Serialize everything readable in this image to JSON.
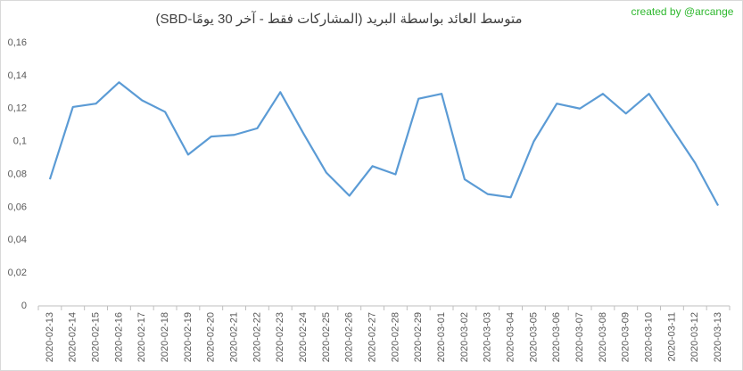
{
  "chart_data": {
    "type": "line",
    "title": "متوسط العائد بواسطة البريد (المشاركات فقط - آخر 30 يومًا-SBD)",
    "annotation": "created by @arcange",
    "categories": [
      "2020-02-13",
      "2020-02-14",
      "2020-02-15",
      "2020-02-16",
      "2020-02-17",
      "2020-02-18",
      "2020-02-19",
      "2020-02-20",
      "2020-02-21",
      "2020-02-22",
      "2020-02-23",
      "2020-02-24",
      "2020-02-25",
      "2020-02-26",
      "2020-02-27",
      "2020-02-28",
      "2020-02-29",
      "2020-03-01",
      "2020-03-02",
      "2020-03-03",
      "2020-03-04",
      "2020-03-05",
      "2020-03-06",
      "2020-03-07",
      "2020-03-08",
      "2020-03-09",
      "2020-03-10",
      "2020-03-11",
      "2020-03-12",
      "2020-03-13"
    ],
    "values": [
      0.077,
      0.121,
      0.123,
      0.136,
      0.125,
      0.118,
      0.092,
      0.103,
      0.104,
      0.108,
      0.13,
      0.105,
      0.081,
      0.067,
      0.085,
      0.08,
      0.126,
      0.129,
      0.077,
      0.068,
      0.066,
      0.1,
      0.123,
      0.12,
      0.129,
      0.117,
      0.129,
      0.108,
      0.087,
      0.061
    ],
    "color": "#5b9bd5",
    "ylim": [
      0,
      0.16
    ],
    "yticks": [
      0,
      {
        "value": 0.02,
        "label": "0,02"
      },
      {
        "value": 0.04,
        "label": "0,04"
      },
      {
        "value": 0.06,
        "label": "0,06"
      },
      {
        "value": 0.08,
        "label": "0,08"
      },
      {
        "value": 0.1,
        "label": "0,1"
      },
      {
        "value": 0.12,
        "label": "0,12"
      },
      {
        "value": 0.14,
        "label": "0,14"
      },
      {
        "value": 0.16,
        "label": "0,16"
      }
    ],
    "grid": false
  }
}
